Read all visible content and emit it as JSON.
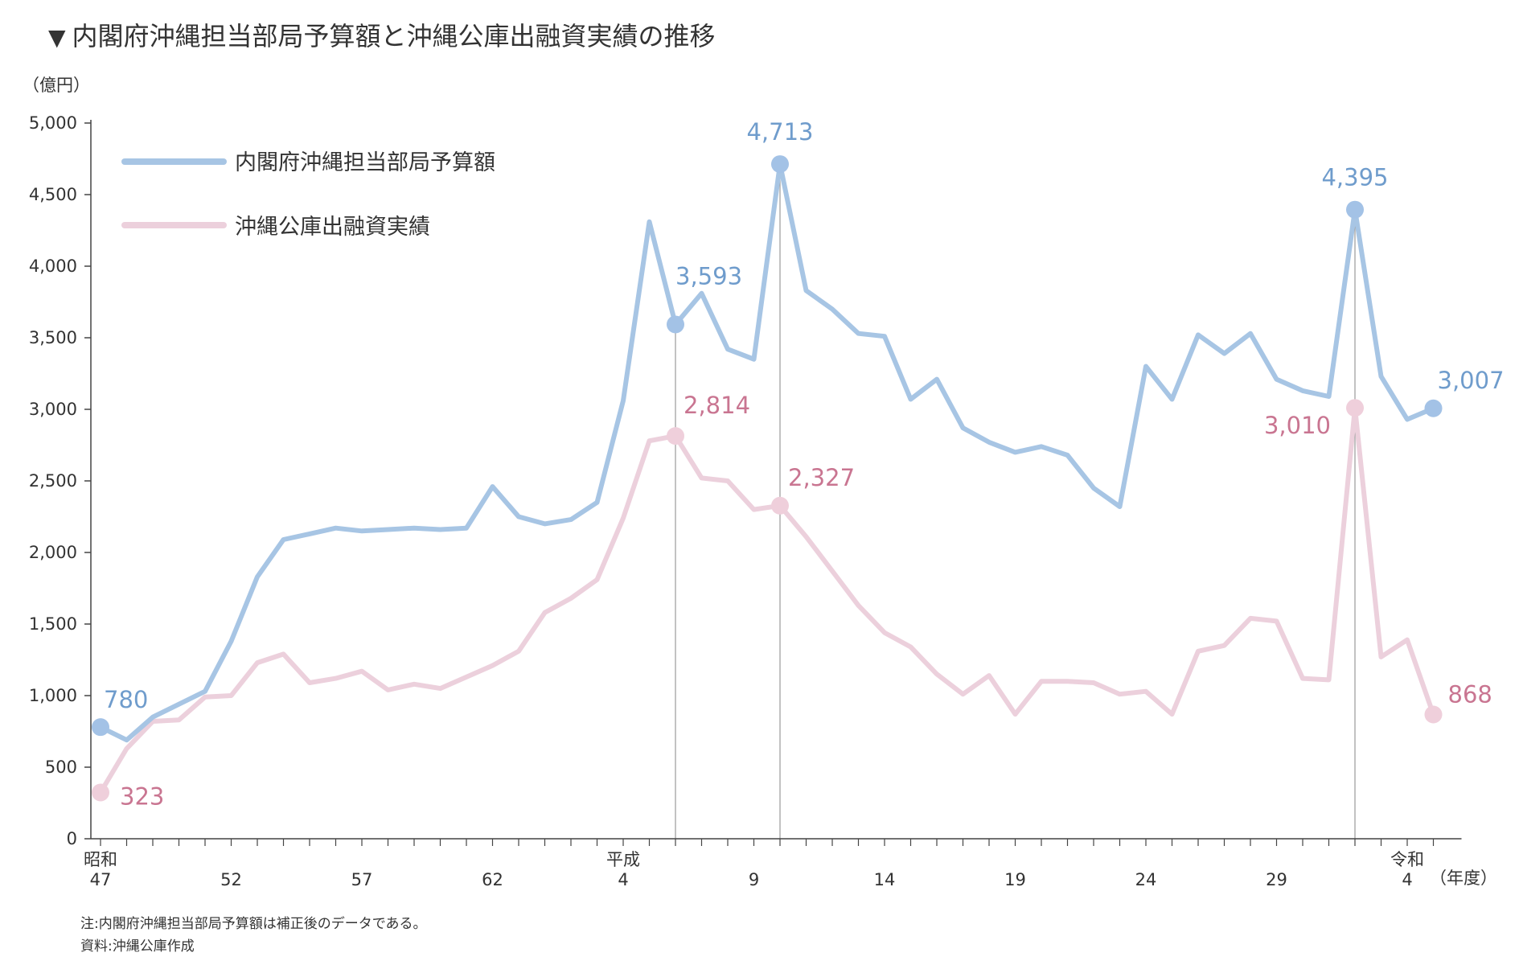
{
  "title": "内閣府沖縄担当部局予算額と沖縄公庫出融資実績の推移",
  "notes": {
    "note1": "注:内閣府沖縄担当部局予算額は補正後のデータである。",
    "note2": "資料:沖縄公庫作成"
  },
  "colors": {
    "budget": "#a7c5e4",
    "budget_marker": "#a3c2e6",
    "budget_label": "#6f9ccc",
    "loan": "#ecd0dc",
    "loan_marker": "#efcfdb",
    "loan_label": "#c97591",
    "axis": "#444444",
    "guide": "#9a9a9a"
  },
  "chart_data": {
    "type": "line",
    "ylabel": "（億円）",
    "xlabel": "（年度）",
    "ylim": [
      0,
      5000
    ],
    "yticks": [
      0,
      500,
      1000,
      1500,
      2000,
      2500,
      3000,
      3500,
      4000,
      4500,
      5000
    ],
    "ytick_labels": [
      "0",
      "500",
      "1,000",
      "1,500",
      "2,000",
      "2,500",
      "3,000",
      "3,500",
      "4,000",
      "4,500",
      "5,000"
    ],
    "x": [
      "S47",
      "S48",
      "S49",
      "S50",
      "S51",
      "S52",
      "S53",
      "S54",
      "S55",
      "S56",
      "S57",
      "S58",
      "S59",
      "S60",
      "S61",
      "S62",
      "S63",
      "H1",
      "H2",
      "H3",
      "H4",
      "H5",
      "H6",
      "H7",
      "H8",
      "H9",
      "H10",
      "H11",
      "H12",
      "H13",
      "H14",
      "H15",
      "H16",
      "H17",
      "H18",
      "H19",
      "H20",
      "H21",
      "H22",
      "H23",
      "H24",
      "H25",
      "H26",
      "H27",
      "H28",
      "H29",
      "H30",
      "R1",
      "R2",
      "R3",
      "R4",
      "R5"
    ],
    "xtick_labels": [
      {
        "index": 0,
        "era": "昭和",
        "year": "47"
      },
      {
        "index": 5,
        "era": "",
        "year": "52"
      },
      {
        "index": 10,
        "era": "",
        "year": "57"
      },
      {
        "index": 15,
        "era": "",
        "year": "62"
      },
      {
        "index": 20,
        "era": "平成",
        "year": "4"
      },
      {
        "index": 25,
        "era": "",
        "year": "9"
      },
      {
        "index": 30,
        "era": "",
        "year": "14"
      },
      {
        "index": 35,
        "era": "",
        "year": "19"
      },
      {
        "index": 40,
        "era": "",
        "year": "24"
      },
      {
        "index": 45,
        "era": "",
        "year": "29"
      },
      {
        "index": 50,
        "era": "令和",
        "year": "4"
      }
    ],
    "legend_position": "top-left",
    "series": [
      {
        "name": "内閣府沖縄担当部局予算額",
        "values": [
          780,
          690,
          850,
          940,
          1030,
          1380,
          1830,
          2090,
          2130,
          2170,
          2150,
          2160,
          2170,
          2160,
          2170,
          2460,
          2250,
          2200,
          2230,
          2350,
          3060,
          4310,
          3593,
          3810,
          3420,
          3350,
          4713,
          3830,
          3700,
          3530,
          3510,
          3070,
          3210,
          2870,
          2770,
          2700,
          2740,
          2680,
          2450,
          2320,
          3300,
          3070,
          3520,
          3390,
          3530,
          3210,
          3130,
          3090,
          4395,
          3230,
          2930,
          3007
        ],
        "labels": [
          {
            "index": 0,
            "text": "780"
          },
          {
            "index": 22,
            "text": "3,593"
          },
          {
            "index": 26,
            "text": "4,713"
          },
          {
            "index": 48,
            "text": "4,395"
          },
          {
            "index": 51,
            "text": "3,007"
          }
        ]
      },
      {
        "name": "沖縄公庫出融資実績",
        "values": [
          323,
          630,
          820,
          830,
          990,
          1000,
          1230,
          1290,
          1090,
          1120,
          1170,
          1040,
          1080,
          1050,
          1130,
          1210,
          1310,
          1580,
          1680,
          1810,
          2240,
          2780,
          2814,
          2520,
          2500,
          2300,
          2327,
          2110,
          1870,
          1630,
          1440,
          1340,
          1150,
          1010,
          1140,
          870,
          1100,
          1100,
          1090,
          1010,
          1030,
          870,
          1310,
          1350,
          1540,
          1520,
          1120,
          1110,
          3010,
          1270,
          1390,
          868
        ],
        "labels": [
          {
            "index": 0,
            "text": "323"
          },
          {
            "index": 22,
            "text": "2,814"
          },
          {
            "index": 26,
            "text": "2,327"
          },
          {
            "index": 48,
            "text": "3,010"
          },
          {
            "index": 51,
            "text": "868"
          }
        ]
      }
    ],
    "guide_lines_at": [
      22,
      26,
      48
    ]
  }
}
